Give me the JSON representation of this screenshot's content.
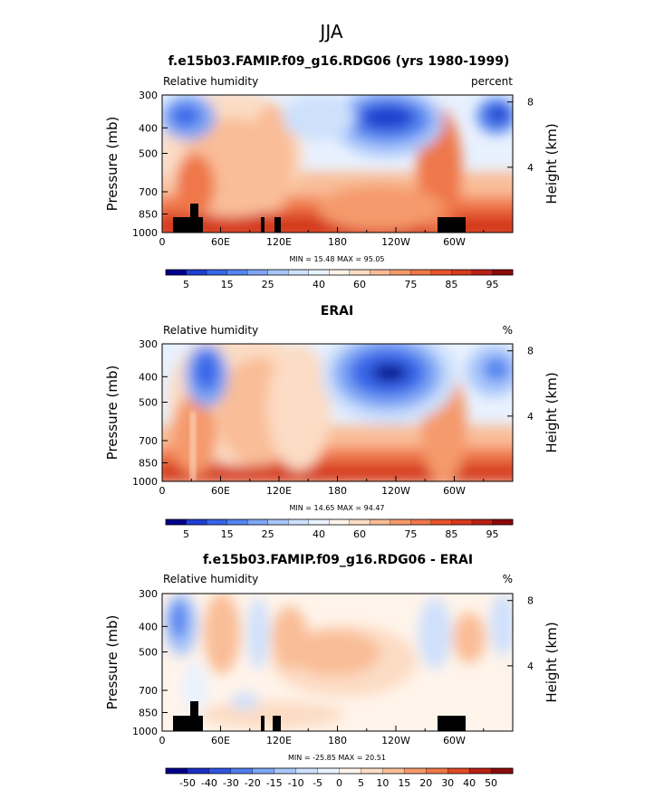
{
  "figure": {
    "supertitle": "JJA"
  },
  "chart_data": [
    {
      "type": "heatmap",
      "title": "f.e15b03.FAMIP.f09_g16.RDG06 (yrs 1980-1999)",
      "left_label": "Relative humidity",
      "right_label": "percent",
      "ylabel": "Pressure (mb)",
      "ylabel2": "Height (km)",
      "y_ticks": [
        "300",
        "400",
        "500",
        "700",
        "850",
        "1000"
      ],
      "y2_ticks": [
        "8",
        "4"
      ],
      "x_ticks": [
        "0",
        "60E",
        "120E",
        "180",
        "120W",
        "60W"
      ],
      "stats": "MIN =  15.48  MAX =  95.05",
      "stats_values": {
        "min": 15.48,
        "max": 95.05
      },
      "colorbar_labels": [
        "5",
        "15",
        "25",
        "40",
        "60",
        "75",
        "85",
        "95"
      ],
      "colorbar_levels": [
        0,
        5,
        10,
        15,
        20,
        25,
        30,
        40,
        50,
        60,
        65,
        70,
        75,
        80,
        85,
        90,
        95,
        100
      ],
      "colorbar_colors": [
        "#00008b",
        "#1f3fd0",
        "#3766e8",
        "#5585f0",
        "#7ea6f5",
        "#a8c6fa",
        "#cde0fc",
        "#e8f1fe",
        "#fff4ea",
        "#fcdcc4",
        "#f9bd97",
        "#f59a6c",
        "#ef7748",
        "#e8542b",
        "#d63a1f",
        "#b82214",
        "#8b0a0a"
      ]
    },
    {
      "type": "heatmap",
      "title": "ERAI",
      "left_label": "Relative humidity",
      "right_label": "%",
      "ylabel": "Pressure (mb)",
      "ylabel2": "Height (km)",
      "y_ticks": [
        "300",
        "400",
        "500",
        "700",
        "850",
        "1000"
      ],
      "y2_ticks": [
        "8",
        "4"
      ],
      "x_ticks": [
        "0",
        "60E",
        "120E",
        "180",
        "120W",
        "60W"
      ],
      "stats": "MIN =  14.65  MAX =  94.47",
      "stats_values": {
        "min": 14.65,
        "max": 94.47
      },
      "colorbar_labels": [
        "5",
        "15",
        "25",
        "40",
        "60",
        "75",
        "85",
        "95"
      ],
      "colorbar_levels": [
        0,
        5,
        10,
        15,
        20,
        25,
        30,
        40,
        50,
        60,
        65,
        70,
        75,
        80,
        85,
        90,
        95,
        100
      ],
      "colorbar_colors": [
        "#00008b",
        "#1f3fd0",
        "#3766e8",
        "#5585f0",
        "#7ea6f5",
        "#a8c6fa",
        "#cde0fc",
        "#e8f1fe",
        "#fff4ea",
        "#fcdcc4",
        "#f9bd97",
        "#f59a6c",
        "#ef7748",
        "#e8542b",
        "#d63a1f",
        "#b82214",
        "#8b0a0a"
      ]
    },
    {
      "type": "heatmap",
      "title": "f.e15b03.FAMIP.f09_g16.RDG06 - ERAI",
      "left_label": "Relative humidity",
      "right_label": "%",
      "ylabel": "Pressure (mb)",
      "ylabel2": "Height (km)",
      "y_ticks": [
        "300",
        "400",
        "500",
        "700",
        "850",
        "1000"
      ],
      "y2_ticks": [
        "8",
        "4"
      ],
      "x_ticks": [
        "0",
        "60E",
        "120E",
        "180",
        "120W",
        "60W"
      ],
      "stats": "MIN = -25.85  MAX =  20.51",
      "stats_values": {
        "min": -25.85,
        "max": 20.51
      },
      "colorbar_labels": [
        "-50",
        "-40",
        "-30",
        "-20",
        "-15",
        "-10",
        "-5",
        "0",
        "5",
        "10",
        "15",
        "20",
        "30",
        "40",
        "50"
      ],
      "colorbar_colors": [
        "#00008b",
        "#1a2fc4",
        "#2f55e0",
        "#4f7eed",
        "#7ea6f5",
        "#a8c6fa",
        "#cfe0fc",
        "#eaf2fe",
        "#fff4ea",
        "#fcdcc4",
        "#f9bd97",
        "#f59a6c",
        "#ef7748",
        "#e04a26",
        "#b82214",
        "#8b0a0a"
      ]
    }
  ]
}
